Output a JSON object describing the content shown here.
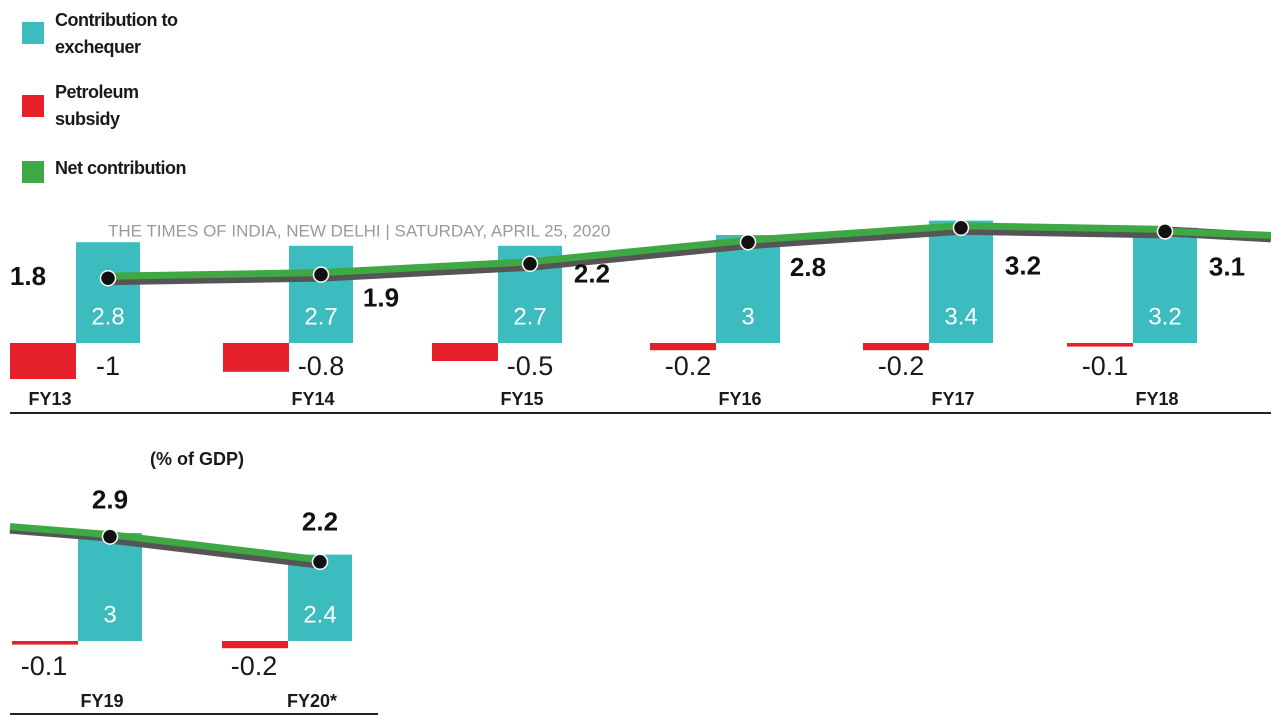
{
  "chart_data": {
    "type": "bar-line",
    "source_line": "THE TIMES OF INDIA, NEW DELHI  |  SATURDAY, APRIL 25, 2020",
    "unit_note": "(% of GDP)",
    "categories": [
      "FY13",
      "FY14",
      "FY15",
      "FY16",
      "FY17",
      "FY18",
      "FY19",
      "FY20*"
    ],
    "series": [
      {
        "name": "Contribution to exchequer",
        "color": "#3dbcbf",
        "values": [
          2.8,
          2.7,
          2.7,
          3,
          3.4,
          3.2,
          3,
          2.4
        ]
      },
      {
        "name": "Petroleum subsidy",
        "color": "#e5202a",
        "values": [
          -1,
          -0.8,
          -0.5,
          -0.2,
          -0.2,
          -0.1,
          -0.1,
          -0.2
        ]
      },
      {
        "name": "Net contribution",
        "color": "#3ea844",
        "values": [
          1.8,
          1.9,
          2.2,
          2.8,
          3.2,
          3.1,
          2.9,
          2.2
        ]
      }
    ]
  }
}
